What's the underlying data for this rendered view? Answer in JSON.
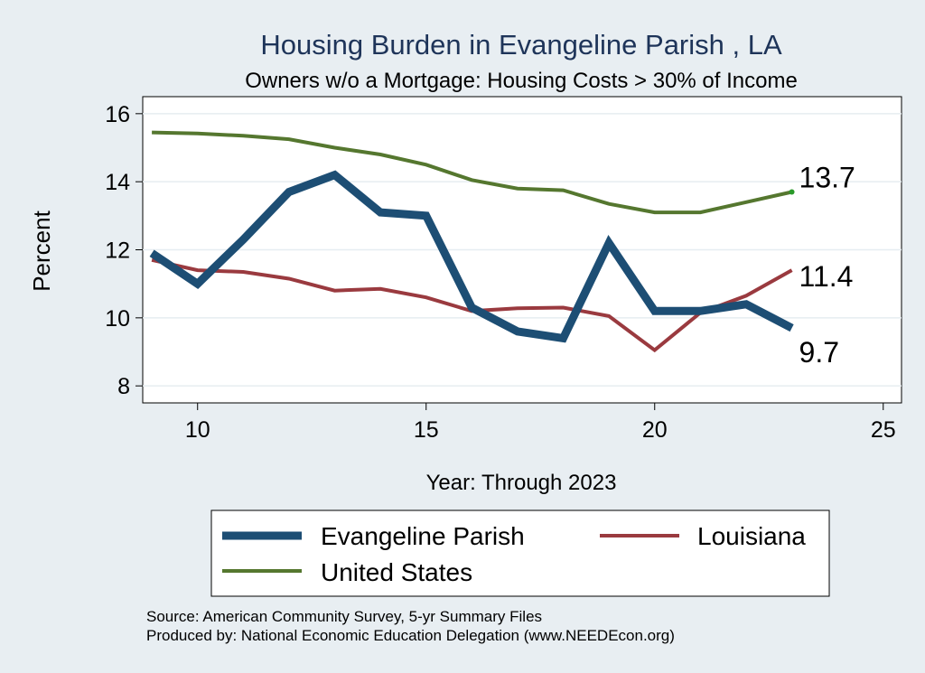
{
  "chart_data": {
    "type": "line",
    "title": "Housing Burden in Evangeline Parish , LA",
    "subtitle": "Owners w/o a Mortgage: Housing Costs > 30% of Income",
    "xlabel": "Year: Through 2023",
    "ylabel": "Percent",
    "xlim": [
      8.8,
      25.4
    ],
    "ylim": [
      7.5,
      16.5
    ],
    "x_ticks": [
      10,
      15,
      20,
      25
    ],
    "y_ticks": [
      8,
      10,
      12,
      14,
      16
    ],
    "x_tick_labels": [
      "10",
      "15",
      "20",
      "25"
    ],
    "y_tick_labels": [
      "8",
      "10",
      "12",
      "14",
      "16"
    ],
    "grid": true,
    "legend_position": "bottom",
    "x": [
      9,
      10,
      11,
      12,
      13,
      14,
      15,
      16,
      17,
      18,
      19,
      20,
      21,
      22,
      23
    ],
    "series": [
      {
        "name": "Evangeline Parish",
        "color": "#1d4e74",
        "values": [
          11.9,
          11.0,
          12.3,
          13.7,
          14.2,
          13.1,
          13.0,
          10.3,
          9.6,
          9.4,
          12.2,
          10.2,
          10.2,
          10.4,
          9.7
        ],
        "end_label": "9.7"
      },
      {
        "name": "Louisiana",
        "color": "#9a3a3f",
        "values": [
          11.7,
          11.4,
          11.35,
          11.15,
          10.8,
          10.85,
          10.6,
          10.2,
          10.28,
          10.3,
          10.05,
          9.05,
          10.15,
          10.65,
          11.4
        ],
        "end_label": "11.4"
      },
      {
        "name": "United States",
        "color": "#55772f",
        "values": [
          15.45,
          15.42,
          15.35,
          15.25,
          15.0,
          14.8,
          14.5,
          14.05,
          13.8,
          13.75,
          13.35,
          13.1,
          13.1,
          13.4,
          13.7
        ],
        "end_label": "13.7"
      }
    ],
    "source_lines": [
      "Source: American Community Survey, 5-yr Summary Files",
      "Produced by: National Economic Education Delegation (www.NEEDEcon.org)"
    ]
  }
}
